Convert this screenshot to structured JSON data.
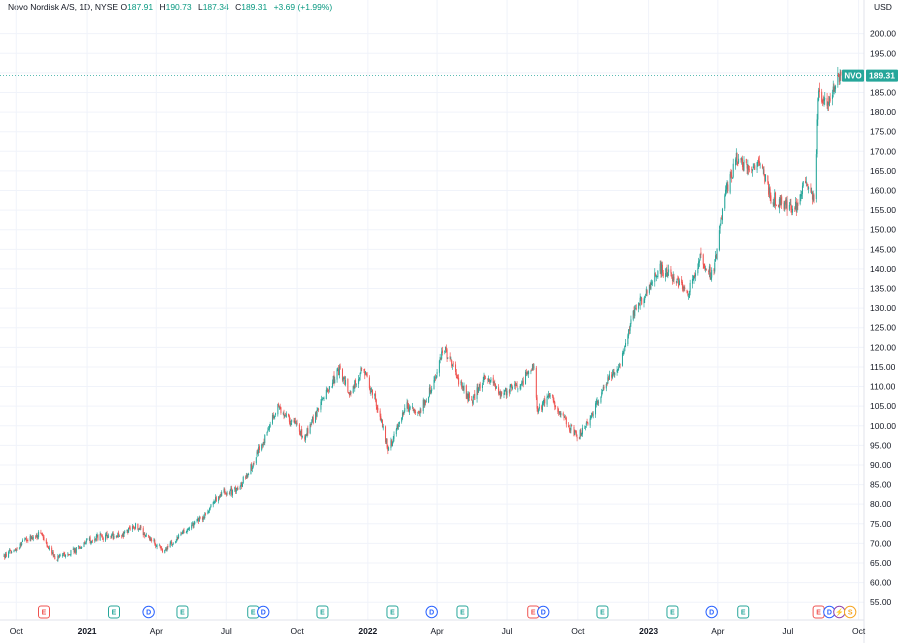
{
  "header": {
    "symbol_line": "Novo Nordisk A/S, 1D, NYSE",
    "open_label": "O",
    "open": "187.91",
    "high_label": "H",
    "high": "190.73",
    "low_label": "L",
    "low": "187.34",
    "close_label": "C",
    "close": "189.31",
    "change": "+3.69 (+1.99%)",
    "currency": "USD"
  },
  "colors": {
    "up": "#26a69a",
    "down": "#ef5350",
    "grid": "#f0f3fa",
    "text": "#131722",
    "earnings": "#26a69a",
    "earnings_red": "#ef5350",
    "dividend": "#2962ff",
    "split": "#f6a623",
    "lightning": "#8e44ad"
  },
  "chart_data": {
    "type": "candlestick",
    "ticker_badge": "NVO",
    "last_price": 189.31,
    "last_price_label": "189.31",
    "ylim": [
      52.5,
      204
    ],
    "y_ticks": [
      "200.00",
      "195.00",
      "190.00",
      "185.00",
      "180.00",
      "175.00",
      "170.00",
      "165.00",
      "160.00",
      "155.00",
      "150.00",
      "145.00",
      "140.00",
      "135.00",
      "130.00",
      "125.00",
      "120.00",
      "115.00",
      "110.00",
      "105.00",
      "100.00",
      "95.00",
      "90.00",
      "85.00",
      "80.00",
      "75.00",
      "70.00",
      "65.00",
      "60.00",
      "55.00"
    ],
    "x_range": [
      "2020-09-15",
      "2023-10-08"
    ],
    "x_ticks": [
      {
        "date": "2020-10-01",
        "label": "Oct",
        "year": false
      },
      {
        "date": "2021-01-01",
        "label": "2021",
        "year": true
      },
      {
        "date": "2021-04-01",
        "label": "Apr",
        "year": false
      },
      {
        "date": "2021-07-01",
        "label": "Jul",
        "year": false
      },
      {
        "date": "2021-10-01",
        "label": "Oct",
        "year": false
      },
      {
        "date": "2022-01-01",
        "label": "2022",
        "year": true
      },
      {
        "date": "2022-04-01",
        "label": "Apr",
        "year": false
      },
      {
        "date": "2022-07-01",
        "label": "Jul",
        "year": false
      },
      {
        "date": "2022-10-01",
        "label": "Oct",
        "year": false
      },
      {
        "date": "2023-01-01",
        "label": "2023",
        "year": true
      },
      {
        "date": "2023-04-01",
        "label": "Apr",
        "year": false
      },
      {
        "date": "2023-07-01",
        "label": "Jul",
        "year": false
      },
      {
        "date": "2023-10-01",
        "label": "Oct",
        "year": false
      }
    ],
    "price_path": [
      [
        "2020-09-15",
        66.5
      ],
      [
        "2020-10-15",
        71.0
      ],
      [
        "2020-11-01",
        72.5
      ],
      [
        "2020-11-20",
        66.0
      ],
      [
        "2020-12-15",
        68.0
      ],
      [
        "2021-01-10",
        71.5
      ],
      [
        "2021-02-15",
        72.0
      ],
      [
        "2021-03-05",
        74.5
      ],
      [
        "2021-03-25",
        71.0
      ],
      [
        "2021-04-12",
        68.0
      ],
      [
        "2021-05-10",
        73.5
      ],
      [
        "2021-06-01",
        77.0
      ],
      [
        "2021-06-25",
        83.0
      ],
      [
        "2021-07-15",
        83.5
      ],
      [
        "2021-08-01",
        89.0
      ],
      [
        "2021-08-20",
        97.0
      ],
      [
        "2021-09-05",
        105.0
      ],
      [
        "2021-09-25",
        101.0
      ],
      [
        "2021-10-10",
        97.0
      ],
      [
        "2021-11-10",
        109.0
      ],
      [
        "2021-11-25",
        114.5
      ],
      [
        "2021-12-10",
        108.0
      ],
      [
        "2021-12-25",
        115.0
      ],
      [
        "2022-01-10",
        107.0
      ],
      [
        "2022-01-28",
        94.0
      ],
      [
        "2022-02-20",
        105.0
      ],
      [
        "2022-03-10",
        104.0
      ],
      [
        "2022-03-25",
        110.0
      ],
      [
        "2022-04-10",
        120.0
      ],
      [
        "2022-04-25",
        113.0
      ],
      [
        "2022-05-15",
        106.0
      ],
      [
        "2022-06-05",
        113.0
      ],
      [
        "2022-06-25",
        108.0
      ],
      [
        "2022-07-20",
        111.0
      ],
      [
        "2022-08-05",
        116.0
      ],
      [
        "2022-08-10",
        103.0
      ],
      [
        "2022-08-25",
        108.0
      ],
      [
        "2022-09-15",
        101.0
      ],
      [
        "2022-10-01",
        97.0
      ],
      [
        "2022-10-20",
        103.0
      ],
      [
        "2022-11-10",
        112.0
      ],
      [
        "2022-11-25",
        115.0
      ],
      [
        "2022-12-10",
        128.0
      ],
      [
        "2022-12-25",
        133.0
      ],
      [
        "2023-01-15",
        140.0
      ],
      [
        "2023-02-05",
        138.0
      ],
      [
        "2023-02-20",
        133.0
      ],
      [
        "2023-03-10",
        143.0
      ],
      [
        "2023-03-25",
        138.0
      ],
      [
        "2023-04-10",
        158.0
      ],
      [
        "2023-04-25",
        168.0
      ],
      [
        "2023-05-10",
        165.0
      ],
      [
        "2023-05-25",
        168.0
      ],
      [
        "2023-06-10",
        158.0
      ],
      [
        "2023-06-25",
        157.0
      ],
      [
        "2023-07-10",
        155.0
      ],
      [
        "2023-07-25",
        163.0
      ],
      [
        "2023-08-05",
        157.0
      ],
      [
        "2023-08-09",
        184.0
      ],
      [
        "2023-08-20",
        182.0
      ],
      [
        "2023-09-01",
        187.0
      ],
      [
        "2023-09-08",
        189.31
      ]
    ],
    "events": [
      {
        "date": "2020-11-06",
        "type": "earnings_red",
        "label": "E"
      },
      {
        "date": "2021-02-05",
        "type": "earnings",
        "label": "E"
      },
      {
        "date": "2021-03-22",
        "type": "dividend",
        "label": "D"
      },
      {
        "date": "2021-05-05",
        "type": "earnings",
        "label": "E"
      },
      {
        "date": "2021-08-05",
        "type": "earnings",
        "label": "E"
      },
      {
        "date": "2021-08-18",
        "type": "dividend",
        "label": "D"
      },
      {
        "date": "2021-11-03",
        "type": "earnings",
        "label": "E"
      },
      {
        "date": "2022-02-02",
        "type": "earnings",
        "label": "E"
      },
      {
        "date": "2022-03-25",
        "type": "dividend",
        "label": "D"
      },
      {
        "date": "2022-05-04",
        "type": "earnings",
        "label": "E"
      },
      {
        "date": "2022-08-04",
        "type": "earnings_red",
        "label": "E"
      },
      {
        "date": "2022-08-17",
        "type": "dividend",
        "label": "D"
      },
      {
        "date": "2022-11-02",
        "type": "earnings",
        "label": "E"
      },
      {
        "date": "2023-02-01",
        "type": "earnings",
        "label": "E"
      },
      {
        "date": "2023-03-24",
        "type": "dividend",
        "label": "D"
      },
      {
        "date": "2023-05-04",
        "type": "earnings",
        "label": "E"
      },
      {
        "date": "2023-08-10",
        "type": "earnings_red",
        "label": "E"
      },
      {
        "date": "2023-08-24",
        "type": "dividend",
        "label": "D"
      },
      {
        "date": "2023-09-06",
        "type": "lightning",
        "label": "⚡"
      },
      {
        "date": "2023-09-20",
        "type": "split",
        "label": "S"
      }
    ]
  }
}
